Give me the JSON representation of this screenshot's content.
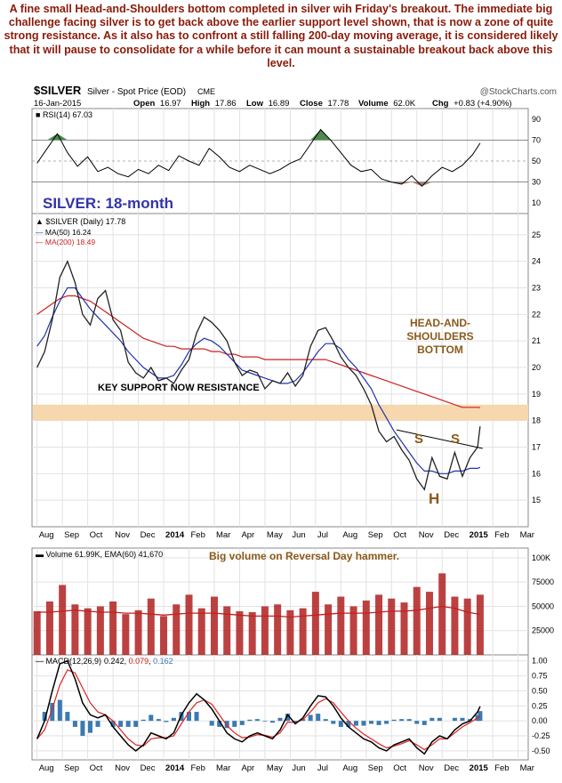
{
  "caption": "A fine small Head-and-Shoulders bottom completed in silver wih Friday's breakout. The immediate big challenge facing silver is to get back above the earlier support level shown, that is now a zone of quite strong resistance. As it also has to confront a still falling 200-day moving average, it is considered likely that it will pause to consolidate for a while before it can mount a sustainable breakout back above this level.",
  "chart_data": {
    "type": "line",
    "header": {
      "symbol": "$SILVER",
      "description": "Silver - Spot Price (EOD)",
      "exchange": "CME",
      "watermark": "@StockCharts.com",
      "date": "16-Jan-2015",
      "open_label": "Open",
      "open": "16.97",
      "high_label": "High",
      "high": "17.86",
      "low_label": "Low",
      "low": "16.89",
      "close_label": "Close",
      "close": "17.78",
      "volume_label": "Volume",
      "volume": "62.0K",
      "chg_label": "Chg",
      "chg": "+0.83 (+4.90%)"
    },
    "x_labels": [
      {
        "label": "Aug",
        "m": 0
      },
      {
        "label": "Sep",
        "m": 1
      },
      {
        "label": "Oct",
        "m": 2
      },
      {
        "label": "Nov",
        "m": 3
      },
      {
        "label": "Dec",
        "m": 4
      },
      {
        "label": "2014",
        "m": 5,
        "bold": true
      },
      {
        "label": "Feb",
        "m": 6
      },
      {
        "label": "Mar",
        "m": 7
      },
      {
        "label": "Apr",
        "m": 8
      },
      {
        "label": "May",
        "m": 9
      },
      {
        "label": "Jun",
        "m": 10
      },
      {
        "label": "Jul",
        "m": 11
      },
      {
        "label": "Aug",
        "m": 12
      },
      {
        "label": "Sep",
        "m": 13
      },
      {
        "label": "Oct",
        "m": 14
      },
      {
        "label": "Nov",
        "m": 15
      },
      {
        "label": "Dec",
        "m": 16
      },
      {
        "label": "2015",
        "m": 17,
        "bold": true
      },
      {
        "label": "Feb",
        "m": 18
      },
      {
        "label": "Mar",
        "m": 19
      }
    ],
    "x_range_months": [
      -0.2,
      19.4
    ],
    "last_bar_month": 17.5,
    "rsi": {
      "legend": "RSI(14) 67.03",
      "ylim": [
        0,
        100
      ],
      "ticks": [
        10,
        30,
        50,
        70,
        90
      ],
      "levels": [
        30,
        70
      ],
      "x": [
        0,
        0.4,
        0.8,
        1.2,
        1.6,
        2.0,
        2.4,
        2.8,
        3.2,
        3.6,
        4.0,
        4.4,
        4.8,
        5.2,
        5.6,
        6.0,
        6.4,
        6.8,
        7.2,
        7.6,
        8.0,
        8.4,
        8.8,
        9.2,
        9.6,
        10.0,
        10.4,
        10.8,
        11.2,
        11.6,
        12.0,
        12.4,
        12.8,
        13.2,
        13.6,
        14.0,
        14.4,
        14.8,
        15.2,
        15.6,
        16.0,
        16.4,
        16.8,
        17.2,
        17.5
      ],
      "y": [
        48,
        62,
        76,
        58,
        45,
        54,
        40,
        44,
        38,
        35,
        42,
        38,
        46,
        41,
        55,
        50,
        46,
        62,
        54,
        44,
        40,
        46,
        42,
        38,
        42,
        48,
        52,
        66,
        80,
        70,
        58,
        46,
        40,
        42,
        33,
        30,
        28,
        36,
        26,
        36,
        44,
        40,
        46,
        56,
        67
      ]
    },
    "price": {
      "legend": "$SILVER (Daily) 17.78",
      "ma50_label": "MA(50) 16.24",
      "ma200_label": "MA(200) 18.49",
      "ylim": [
        14.0,
        25.8
      ],
      "ticks": [
        15,
        16,
        17,
        18,
        19,
        20,
        21,
        22,
        23,
        24,
        25
      ],
      "resistance_zone": [
        18.0,
        18.6
      ],
      "x": [
        0,
        0.3,
        0.6,
        0.9,
        1.2,
        1.5,
        1.8,
        2.1,
        2.4,
        2.7,
        3.0,
        3.3,
        3.6,
        3.9,
        4.2,
        4.5,
        4.8,
        5.1,
        5.4,
        5.7,
        6.0,
        6.3,
        6.6,
        6.9,
        7.2,
        7.5,
        7.8,
        8.1,
        8.4,
        8.7,
        9.0,
        9.3,
        9.6,
        9.9,
        10.2,
        10.5,
        10.8,
        11.1,
        11.4,
        11.7,
        12.0,
        12.3,
        12.6,
        12.9,
        13.2,
        13.5,
        13.8,
        14.1,
        14.4,
        14.7,
        15.0,
        15.3,
        15.6,
        15.9,
        16.2,
        16.5,
        16.8,
        17.1,
        17.4,
        17.5
      ],
      "close": [
        20.0,
        20.6,
        21.8,
        23.4,
        24.0,
        23.2,
        22.0,
        21.6,
        22.6,
        22.9,
        21.8,
        21.4,
        20.2,
        19.8,
        19.6,
        20.0,
        19.5,
        19.6,
        19.4,
        19.9,
        20.3,
        21.3,
        21.9,
        21.7,
        21.4,
        21.0,
        20.2,
        19.7,
        19.9,
        19.8,
        19.2,
        19.5,
        19.4,
        19.8,
        19.3,
        19.7,
        20.8,
        21.4,
        21.5,
        21.0,
        20.4,
        20.0,
        19.7,
        19.2,
        18.6,
        17.6,
        17.2,
        17.4,
        16.9,
        16.5,
        15.8,
        15.4,
        16.6,
        15.9,
        15.8,
        16.8,
        15.9,
        16.6,
        17.0,
        17.78
      ],
      "ma50": [
        20.8,
        21.2,
        21.9,
        22.5,
        23.0,
        23.0,
        22.6,
        22.2,
        21.9,
        21.6,
        21.3,
        21.0,
        20.6,
        20.3,
        20.0,
        19.8,
        19.6,
        19.6,
        19.7,
        20.1,
        20.6,
        20.9,
        21.1,
        21.0,
        20.8,
        20.5,
        20.2,
        19.9,
        19.8,
        19.7,
        19.6,
        19.5,
        19.4,
        19.4,
        19.5,
        19.8,
        20.2,
        20.6,
        20.9,
        20.9,
        20.7,
        20.3,
        20.0,
        19.6,
        19.2,
        18.6,
        18.1,
        17.6,
        17.2,
        16.8,
        16.4,
        16.1,
        16.1,
        16.0,
        16.0,
        16.1,
        16.1,
        16.2,
        16.2,
        16.24
      ],
      "ma200": [
        22.0,
        22.2,
        22.4,
        22.6,
        22.7,
        22.7,
        22.6,
        22.5,
        22.3,
        22.1,
        21.9,
        21.7,
        21.5,
        21.3,
        21.1,
        21.0,
        20.9,
        20.8,
        20.8,
        20.7,
        20.7,
        20.7,
        20.7,
        20.6,
        20.6,
        20.5,
        20.5,
        20.4,
        20.4,
        20.4,
        20.3,
        20.3,
        20.3,
        20.3,
        20.3,
        20.3,
        20.3,
        20.3,
        20.3,
        20.2,
        20.1,
        20.0,
        19.9,
        19.8,
        19.7,
        19.6,
        19.5,
        19.4,
        19.3,
        19.2,
        19.1,
        19.0,
        18.9,
        18.8,
        18.7,
        18.6,
        18.5,
        18.5,
        18.5,
        18.49
      ],
      "neckline": {
        "x": [
          14.2,
          17.6
        ],
        "y": [
          17.65,
          16.95
        ]
      }
    },
    "volume": {
      "legend": "Volume 61.99K, EMA(60) 41,670",
      "ylim": [
        0,
        110000
      ],
      "tick_labels": [
        "25000",
        "50000",
        "75000",
        "100K"
      ],
      "tick_values": [
        25000,
        50000,
        75000,
        100000
      ],
      "x": [
        0,
        0.5,
        1.0,
        1.5,
        2.0,
        2.5,
        3.0,
        3.5,
        4.0,
        4.5,
        5.0,
        5.5,
        6.0,
        6.5,
        7.0,
        7.5,
        8.0,
        8.5,
        9.0,
        9.5,
        10.0,
        10.5,
        11.0,
        11.5,
        12.0,
        12.5,
        13.0,
        13.5,
        14.0,
        14.5,
        15.0,
        15.5,
        16.0,
        16.5,
        17.0,
        17.5
      ],
      "values": [
        45000,
        55000,
        72000,
        52000,
        48000,
        50000,
        55000,
        42000,
        46000,
        58000,
        40000,
        52000,
        62000,
        48000,
        60000,
        50000,
        45000,
        44000,
        50000,
        52000,
        46000,
        48000,
        65000,
        52000,
        60000,
        50000,
        56000,
        62000,
        58000,
        54000,
        70000,
        65000,
        84000,
        60000,
        58000,
        62000
      ],
      "ema": [
        44000,
        44000,
        45000,
        46000,
        45000,
        44000,
        44000,
        43000,
        43000,
        42000,
        41000,
        42000,
        43000,
        43000,
        43000,
        42000,
        41000,
        40000,
        40000,
        40000,
        39000,
        40000,
        41000,
        42000,
        43000,
        43000,
        43000,
        44000,
        45000,
        45000,
        46000,
        48000,
        50000,
        48000,
        44000,
        41670
      ]
    },
    "macd": {
      "legend_prefix": "MACD(12,26,9)",
      "macd_value": "0.242",
      "signal_value": "0.079",
      "hist_value": "0.162",
      "ylim": [
        -0.65,
        1.1
      ],
      "ticks": [
        -0.5,
        -0.25,
        0.0,
        0.25,
        0.5,
        0.75,
        1.0
      ],
      "tick_labels": [
        "-0.50",
        "-0.25",
        "0.00",
        "0.25",
        "0.50",
        "0.75",
        "1.00"
      ],
      "x": [
        0,
        0.3,
        0.6,
        0.9,
        1.2,
        1.5,
        1.8,
        2.1,
        2.4,
        2.7,
        3.0,
        3.3,
        3.6,
        3.9,
        4.2,
        4.5,
        4.8,
        5.1,
        5.4,
        5.7,
        6.0,
        6.3,
        6.6,
        6.9,
        7.2,
        7.5,
        7.8,
        8.1,
        8.4,
        8.7,
        9.0,
        9.3,
        9.6,
        9.9,
        10.2,
        10.5,
        10.8,
        11.1,
        11.4,
        11.7,
        12.0,
        12.3,
        12.6,
        12.9,
        13.2,
        13.5,
        13.8,
        14.1,
        14.4,
        14.7,
        15.0,
        15.3,
        15.6,
        15.9,
        16.2,
        16.5,
        16.8,
        17.1,
        17.4,
        17.5
      ],
      "macd": [
        -0.3,
        0.0,
        0.5,
        0.95,
        1.0,
        0.7,
        0.3,
        0.1,
        0.05,
        0.1,
        -0.1,
        -0.25,
        -0.4,
        -0.5,
        -0.4,
        -0.2,
        -0.25,
        -0.3,
        -0.2,
        0.1,
        0.3,
        0.45,
        0.35,
        0.2,
        0.0,
        -0.2,
        -0.3,
        -0.35,
        -0.25,
        -0.2,
        -0.25,
        -0.3,
        -0.15,
        0.1,
        -0.05,
        0.05,
        0.25,
        0.42,
        0.4,
        0.25,
        0.05,
        -0.1,
        -0.2,
        -0.3,
        -0.35,
        -0.45,
        -0.5,
        -0.4,
        -0.35,
        -0.3,
        -0.45,
        -0.55,
        -0.35,
        -0.25,
        -0.3,
        -0.15,
        -0.05,
        0.0,
        0.15,
        0.242
      ],
      "signal": [
        -0.3,
        -0.15,
        0.2,
        0.6,
        0.85,
        0.8,
        0.55,
        0.3,
        0.15,
        0.1,
        0.0,
        -0.15,
        -0.3,
        -0.4,
        -0.42,
        -0.3,
        -0.28,
        -0.28,
        -0.25,
        -0.05,
        0.15,
        0.3,
        0.35,
        0.28,
        0.1,
        -0.08,
        -0.2,
        -0.28,
        -0.27,
        -0.23,
        -0.24,
        -0.27,
        -0.2,
        -0.02,
        -0.03,
        0.02,
        0.15,
        0.3,
        0.37,
        0.3,
        0.15,
        0.0,
        -0.12,
        -0.22,
        -0.3,
        -0.38,
        -0.45,
        -0.42,
        -0.38,
        -0.33,
        -0.4,
        -0.48,
        -0.4,
        -0.3,
        -0.3,
        -0.2,
        -0.1,
        -0.03,
        0.05,
        0.079
      ]
    },
    "annotations": {
      "title": "SILVER: 18-month",
      "hs_label_1": "HEAD-AND-",
      "hs_label_2": "SHOULDERS",
      "hs_label_3": "BOTTOM",
      "support_label": "KEY SUPPORT NOW RESISTANCE",
      "left_shoulder": "S",
      "right_shoulder": "S",
      "head": "H",
      "volume_note": "Big volume on Reversal Day hammer."
    },
    "colors": {
      "ma50": "#2233aa",
      "ma200": "#cc2222",
      "price_line": "#222222",
      "resistance_zone": "#f6d7ae",
      "annotation_brown": "#8b5a1b",
      "annotation_blue": "#3333aa",
      "caption": "#8b1a0a",
      "rsi_overbought": "#4e8a4e",
      "rsi_oversold": "#a77a72",
      "volume_bar": "#b02020",
      "ema": "#c02020",
      "macd_line": "#000000",
      "signal_line": "#dd2222",
      "hist": "#3a7ab0"
    }
  }
}
